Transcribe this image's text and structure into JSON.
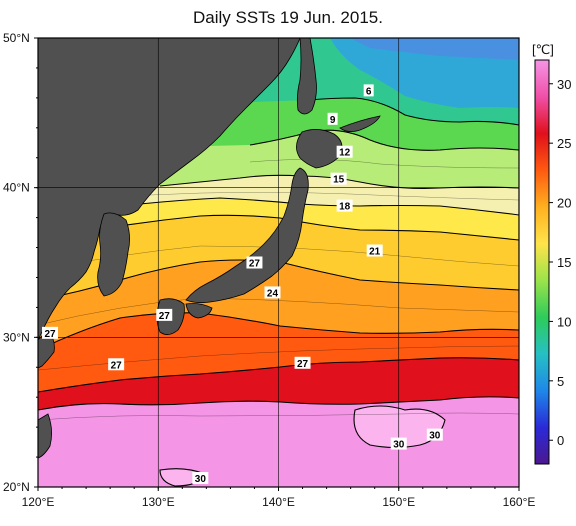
{
  "title": "Daily SSTs 19 Jun. 2015.",
  "map": {
    "lon_range": [
      120,
      160
    ],
    "lat_range": [
      20,
      50
    ],
    "lon_ticks": [
      "120°E",
      "130°E",
      "140°E",
      "150°E",
      "160°E"
    ],
    "lat_ticks": [
      "20°N",
      "30°N",
      "40°N",
      "50°N"
    ],
    "grid": true,
    "land_color": "#505050"
  },
  "contour_labels": [
    {
      "text": "6",
      "lon": 147.5,
      "lat": 46.5
    },
    {
      "text": "9",
      "lon": 144.5,
      "lat": 44.6
    },
    {
      "text": "12",
      "lon": 145.5,
      "lat": 42.4
    },
    {
      "text": "15",
      "lon": 145.0,
      "lat": 40.6
    },
    {
      "text": "18",
      "lon": 145.5,
      "lat": 38.8
    },
    {
      "text": "21",
      "lon": 148.0,
      "lat": 35.8
    },
    {
      "text": "24",
      "lon": 139.5,
      "lat": 33.0
    },
    {
      "text": "27",
      "lon": 121.0,
      "lat": 30.3
    },
    {
      "text": "27",
      "lon": 130.5,
      "lat": 31.5
    },
    {
      "text": "27",
      "lon": 138.0,
      "lat": 35.0
    },
    {
      "text": "27",
      "lon": 126.5,
      "lat": 28.2
    },
    {
      "text": "27",
      "lon": 142.0,
      "lat": 28.3
    },
    {
      "text": "30",
      "lon": 153.0,
      "lat": 23.5
    },
    {
      "text": "30",
      "lon": 150.0,
      "lat": 22.9
    },
    {
      "text": "30",
      "lon": 133.5,
      "lat": 20.6
    }
  ],
  "colorbar": {
    "unit": "[℃]",
    "ticks": [
      "0",
      "5",
      "10",
      "15",
      "20",
      "25",
      "30"
    ],
    "tick_values": [
      0,
      5,
      10,
      15,
      20,
      25,
      30
    ],
    "range": [
      -2,
      32
    ],
    "colors": [
      "#4b1890",
      "#2a2ad8",
      "#1e88e8",
      "#27c0c4",
      "#2ecc5a",
      "#9be34a",
      "#ffe34a",
      "#ffb020",
      "#ff5a10",
      "#e0101c",
      "#f050a8",
      "#f595e6"
    ]
  }
}
